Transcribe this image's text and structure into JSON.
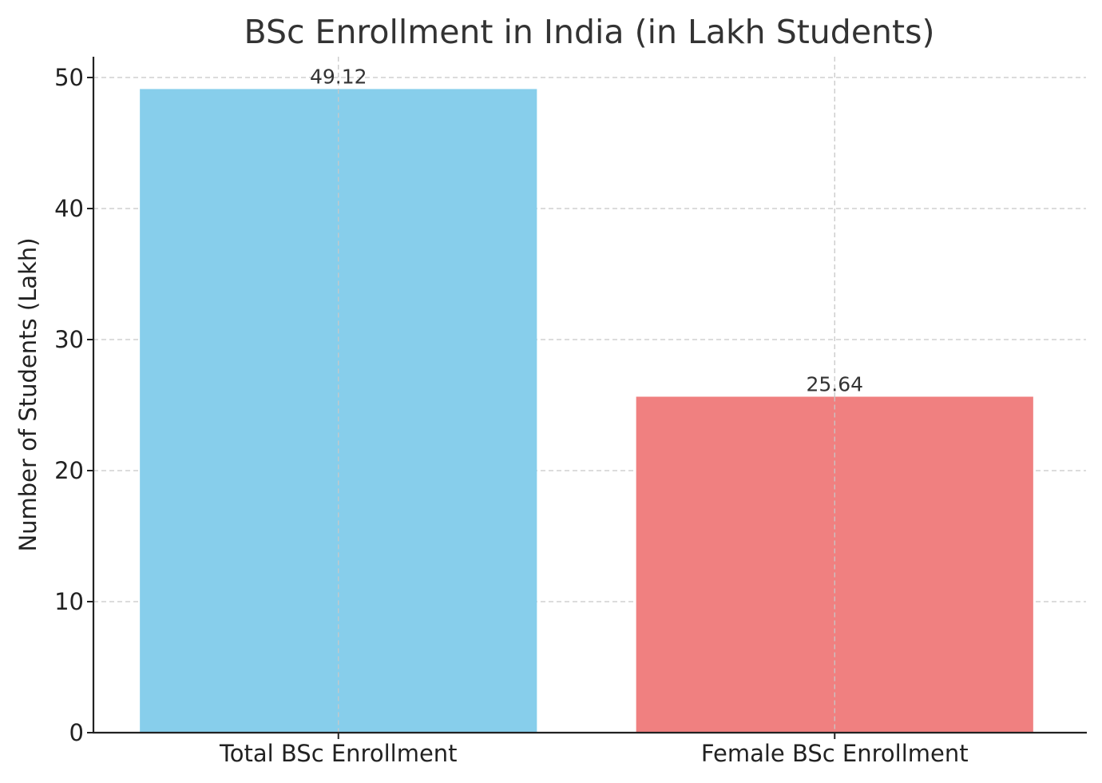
{
  "chart_data": {
    "type": "bar",
    "title": "BSc Enrollment in India (in Lakh Students)",
    "xlabel": "",
    "ylabel": "Number of Students (Lakh)",
    "categories": [
      "Total BSc Enrollment",
      "Female BSc Enrollment"
    ],
    "values": [
      49.12,
      25.64
    ],
    "value_labels": [
      "49.12",
      "25.64"
    ],
    "colors": [
      "#87ceeb",
      "#f08080"
    ],
    "ylim": [
      0,
      51.6
    ],
    "yticks": [
      0,
      10,
      20,
      30,
      40,
      50
    ],
    "ytick_labels": [
      "0",
      "10",
      "20",
      "30",
      "40",
      "50"
    ],
    "grid": true,
    "legend": "none"
  }
}
